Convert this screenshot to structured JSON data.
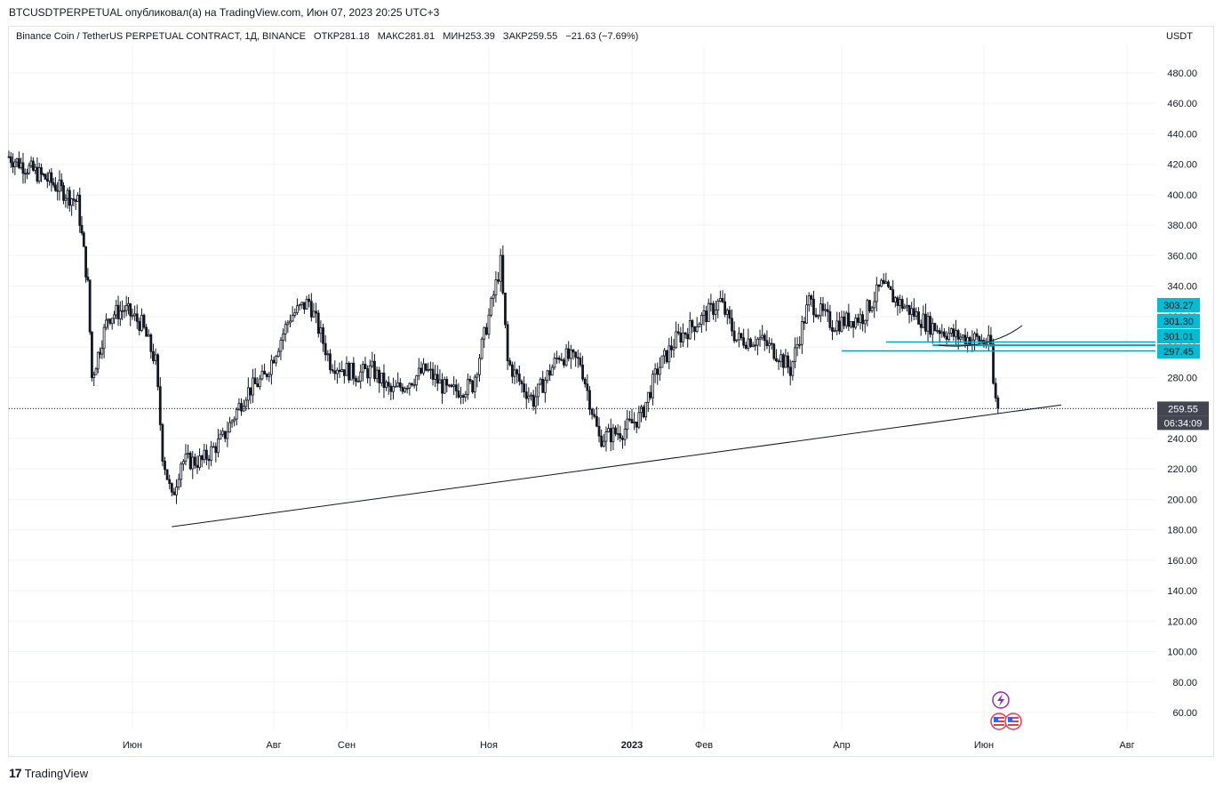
{
  "header": {
    "publication": "BTCUSDTPERPETUAL опубликовал(а) на TradingView.com, Июн 07, 2023 20:25 UTC+3"
  },
  "legend": {
    "symbol": "Binance Coin / TetherUS PERPETUAL CONTRACT, 1Д, BINANCE",
    "open": "ОТКР281.18",
    "high": "МАКС281.81",
    "low": "МИН253.39",
    "close": "ЗАКР259.55",
    "change": "−21.63 (−7.69%)"
  },
  "currency": "USDT",
  "footer": {
    "brand": "TradingView",
    "mark": "17"
  },
  "colors": {
    "candle": "#131722",
    "horizontal_lines": "#00a2c2",
    "price_badge_bg": "#00bcd4",
    "last_price_bg": "#434651",
    "trendline": "#131722",
    "grid": "#f0f3fa"
  },
  "icons": [
    "lightning-icon",
    "us-flag-icon",
    "us-flag-icon"
  ],
  "chart_data": {
    "type": "candlestick",
    "ylim": [
      50,
      500
    ],
    "y_ticks": [
      "480.00",
      "460.00",
      "440.00",
      "420.00",
      "400.00",
      "380.00",
      "360.00",
      "340.00",
      "320.00",
      "300.00",
      "280.00",
      "260.00",
      "240.00",
      "220.00",
      "200.00",
      "180.00",
      "160.00",
      "140.00",
      "120.00",
      "100.00",
      "80.00",
      "60.00"
    ],
    "x_ticks": [
      "Июн",
      "Авг",
      "Сен",
      "Ноя",
      "2023",
      "Фев",
      "Апр",
      "Июн",
      "Авг"
    ],
    "price_labels": [
      "303.27",
      "301.30",
      "301.01",
      "297.45"
    ],
    "last_price": "259.55",
    "countdown": "06:34:09",
    "horizontal_levels": [
      303.27,
      301.3,
      301.01,
      297.45
    ],
    "trendline": {
      "from": [
        "2022-06-18",
        182
      ],
      "to": [
        "2023-07-04",
        262
      ]
    },
    "close_path": [
      [
        "2022-04-01",
        425
      ],
      [
        "2022-04-20",
        410
      ],
      [
        "2022-05-05",
        395
      ],
      [
        "2022-05-10",
        340
      ],
      [
        "2022-05-12",
        280
      ],
      [
        "2022-05-20",
        320
      ],
      [
        "2022-05-28",
        325
      ],
      [
        "2022-06-05",
        315
      ],
      [
        "2022-06-11",
        290
      ],
      [
        "2022-06-14",
        230
      ],
      [
        "2022-06-18",
        200
      ],
      [
        "2022-06-22",
        225
      ],
      [
        "2022-07-01",
        225
      ],
      [
        "2022-07-10",
        240
      ],
      [
        "2022-07-20",
        270
      ],
      [
        "2022-07-28",
        280
      ],
      [
        "2022-08-08",
        320
      ],
      [
        "2022-08-16",
        330
      ],
      [
        "2022-08-25",
        290
      ],
      [
        "2022-09-05",
        282
      ],
      [
        "2022-09-12",
        285
      ],
      [
        "2022-09-20",
        270
      ],
      [
        "2022-10-05",
        285
      ],
      [
        "2022-10-15",
        270
      ],
      [
        "2022-10-25",
        275
      ],
      [
        "2022-11-01",
        320
      ],
      [
        "2022-11-06",
        355
      ],
      [
        "2022-11-09",
        290
      ],
      [
        "2022-11-15",
        275
      ],
      [
        "2022-11-20",
        265
      ],
      [
        "2022-12-01",
        295
      ],
      [
        "2022-12-10",
        290
      ],
      [
        "2022-12-18",
        240
      ],
      [
        "2022-12-28",
        245
      ],
      [
        "2023-01-05",
        255
      ],
      [
        "2023-01-12",
        285
      ],
      [
        "2023-01-20",
        305
      ],
      [
        "2023-02-01",
        320
      ],
      [
        "2023-02-08",
        330
      ],
      [
        "2023-02-15",
        305
      ],
      [
        "2023-02-25",
        305
      ],
      [
        "2023-03-05",
        295
      ],
      [
        "2023-03-10",
        285
      ],
      [
        "2023-03-18",
        330
      ],
      [
        "2023-03-28",
        315
      ],
      [
        "2023-04-10",
        320
      ],
      [
        "2023-04-18",
        340
      ],
      [
        "2023-04-25",
        330
      ],
      [
        "2023-05-08",
        315
      ],
      [
        "2023-05-20",
        307
      ],
      [
        "2023-05-30",
        305
      ],
      [
        "2023-06-04",
        301
      ],
      [
        "2023-06-05",
        275
      ],
      [
        "2023-06-07",
        259.55
      ]
    ]
  }
}
